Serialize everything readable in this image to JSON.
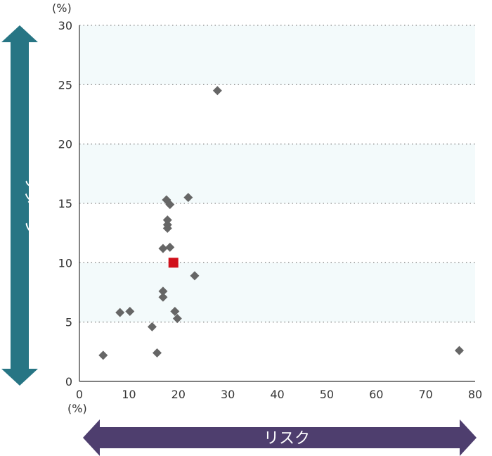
{
  "chart_data": {
    "type": "scatter",
    "xlabel": "リスク",
    "ylabel": "リターン",
    "x_unit": "(%)",
    "y_unit": "(%)",
    "xlim": [
      0,
      80
    ],
    "ylim": [
      0,
      30
    ],
    "x_ticks": [
      "0",
      "10",
      "20",
      "30",
      "40",
      "50",
      "60",
      "70",
      "80"
    ],
    "y_ticks": [
      "0",
      "5",
      "10",
      "15",
      "20",
      "25",
      "30"
    ],
    "grid": "horizontal dotted",
    "band_color": "#f3fafb",
    "point_color": "#666666",
    "highlight_color": "#d0101b",
    "y_arrow_color": "#277584",
    "x_arrow_color": "#4e3e6e",
    "series": [
      {
        "marker": "diamond",
        "points": [
          {
            "x": 4.8,
            "y": 2.2
          },
          {
            "x": 8.2,
            "y": 5.8
          },
          {
            "x": 10.2,
            "y": 5.9
          },
          {
            "x": 14.7,
            "y": 4.6
          },
          {
            "x": 15.7,
            "y": 2.4
          },
          {
            "x": 16.9,
            "y": 7.6
          },
          {
            "x": 16.9,
            "y": 7.1
          },
          {
            "x": 16.9,
            "y": 11.2
          },
          {
            "x": 17.6,
            "y": 15.3
          },
          {
            "x": 17.8,
            "y": 13.6
          },
          {
            "x": 17.8,
            "y": 13.2
          },
          {
            "x": 17.8,
            "y": 12.9
          },
          {
            "x": 18.3,
            "y": 14.9
          },
          {
            "x": 18.3,
            "y": 11.3
          },
          {
            "x": 19.3,
            "y": 5.9
          },
          {
            "x": 19.8,
            "y": 5.3
          },
          {
            "x": 22.0,
            "y": 15.5
          },
          {
            "x": 23.3,
            "y": 8.9
          },
          {
            "x": 27.9,
            "y": 24.5
          },
          {
            "x": 76.8,
            "y": 2.6
          }
        ]
      },
      {
        "marker": "square",
        "highlight": true,
        "points": [
          {
            "x": 19.0,
            "y": 10.0
          }
        ]
      }
    ]
  }
}
